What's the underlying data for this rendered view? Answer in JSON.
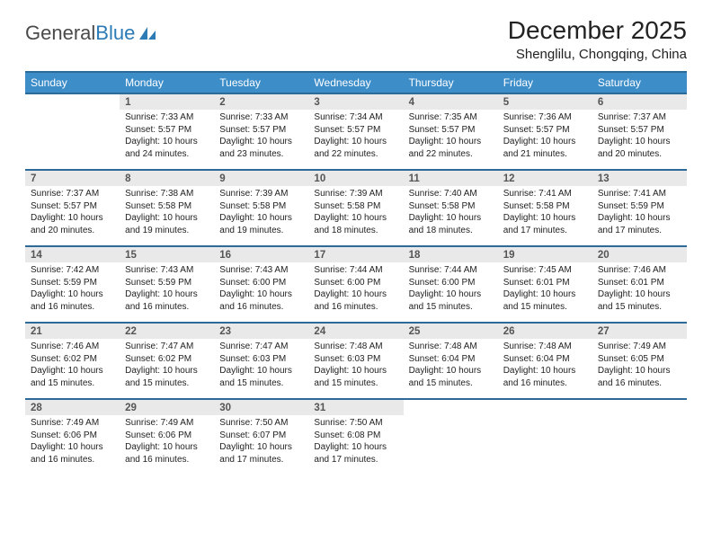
{
  "logo": {
    "text1": "General",
    "text2": "Blue"
  },
  "title": "December 2025",
  "location": "Shenglilu, Chongqing, China",
  "header_bg": "#3d8dc9",
  "header_border": "#2c6a9a",
  "daynum_bg": "#e9e9e9",
  "dow": [
    "Sunday",
    "Monday",
    "Tuesday",
    "Wednesday",
    "Thursday",
    "Friday",
    "Saturday"
  ],
  "weeks": [
    {
      "nums": [
        "",
        "1",
        "2",
        "3",
        "4",
        "5",
        "6"
      ],
      "cells": [
        null,
        {
          "sunrise": "Sunrise: 7:33 AM",
          "sunset": "Sunset: 5:57 PM",
          "daylight": "Daylight: 10 hours and 24 minutes."
        },
        {
          "sunrise": "Sunrise: 7:33 AM",
          "sunset": "Sunset: 5:57 PM",
          "daylight": "Daylight: 10 hours and 23 minutes."
        },
        {
          "sunrise": "Sunrise: 7:34 AM",
          "sunset": "Sunset: 5:57 PM",
          "daylight": "Daylight: 10 hours and 22 minutes."
        },
        {
          "sunrise": "Sunrise: 7:35 AM",
          "sunset": "Sunset: 5:57 PM",
          "daylight": "Daylight: 10 hours and 22 minutes."
        },
        {
          "sunrise": "Sunrise: 7:36 AM",
          "sunset": "Sunset: 5:57 PM",
          "daylight": "Daylight: 10 hours and 21 minutes."
        },
        {
          "sunrise": "Sunrise: 7:37 AM",
          "sunset": "Sunset: 5:57 PM",
          "daylight": "Daylight: 10 hours and 20 minutes."
        }
      ]
    },
    {
      "nums": [
        "7",
        "8",
        "9",
        "10",
        "11",
        "12",
        "13"
      ],
      "cells": [
        {
          "sunrise": "Sunrise: 7:37 AM",
          "sunset": "Sunset: 5:57 PM",
          "daylight": "Daylight: 10 hours and 20 minutes."
        },
        {
          "sunrise": "Sunrise: 7:38 AM",
          "sunset": "Sunset: 5:58 PM",
          "daylight": "Daylight: 10 hours and 19 minutes."
        },
        {
          "sunrise": "Sunrise: 7:39 AM",
          "sunset": "Sunset: 5:58 PM",
          "daylight": "Daylight: 10 hours and 19 minutes."
        },
        {
          "sunrise": "Sunrise: 7:39 AM",
          "sunset": "Sunset: 5:58 PM",
          "daylight": "Daylight: 10 hours and 18 minutes."
        },
        {
          "sunrise": "Sunrise: 7:40 AM",
          "sunset": "Sunset: 5:58 PM",
          "daylight": "Daylight: 10 hours and 18 minutes."
        },
        {
          "sunrise": "Sunrise: 7:41 AM",
          "sunset": "Sunset: 5:58 PM",
          "daylight": "Daylight: 10 hours and 17 minutes."
        },
        {
          "sunrise": "Sunrise: 7:41 AM",
          "sunset": "Sunset: 5:59 PM",
          "daylight": "Daylight: 10 hours and 17 minutes."
        }
      ]
    },
    {
      "nums": [
        "14",
        "15",
        "16",
        "17",
        "18",
        "19",
        "20"
      ],
      "cells": [
        {
          "sunrise": "Sunrise: 7:42 AM",
          "sunset": "Sunset: 5:59 PM",
          "daylight": "Daylight: 10 hours and 16 minutes."
        },
        {
          "sunrise": "Sunrise: 7:43 AM",
          "sunset": "Sunset: 5:59 PM",
          "daylight": "Daylight: 10 hours and 16 minutes."
        },
        {
          "sunrise": "Sunrise: 7:43 AM",
          "sunset": "Sunset: 6:00 PM",
          "daylight": "Daylight: 10 hours and 16 minutes."
        },
        {
          "sunrise": "Sunrise: 7:44 AM",
          "sunset": "Sunset: 6:00 PM",
          "daylight": "Daylight: 10 hours and 16 minutes."
        },
        {
          "sunrise": "Sunrise: 7:44 AM",
          "sunset": "Sunset: 6:00 PM",
          "daylight": "Daylight: 10 hours and 15 minutes."
        },
        {
          "sunrise": "Sunrise: 7:45 AM",
          "sunset": "Sunset: 6:01 PM",
          "daylight": "Daylight: 10 hours and 15 minutes."
        },
        {
          "sunrise": "Sunrise: 7:46 AM",
          "sunset": "Sunset: 6:01 PM",
          "daylight": "Daylight: 10 hours and 15 minutes."
        }
      ]
    },
    {
      "nums": [
        "21",
        "22",
        "23",
        "24",
        "25",
        "26",
        "27"
      ],
      "cells": [
        {
          "sunrise": "Sunrise: 7:46 AM",
          "sunset": "Sunset: 6:02 PM",
          "daylight": "Daylight: 10 hours and 15 minutes."
        },
        {
          "sunrise": "Sunrise: 7:47 AM",
          "sunset": "Sunset: 6:02 PM",
          "daylight": "Daylight: 10 hours and 15 minutes."
        },
        {
          "sunrise": "Sunrise: 7:47 AM",
          "sunset": "Sunset: 6:03 PM",
          "daylight": "Daylight: 10 hours and 15 minutes."
        },
        {
          "sunrise": "Sunrise: 7:48 AM",
          "sunset": "Sunset: 6:03 PM",
          "daylight": "Daylight: 10 hours and 15 minutes."
        },
        {
          "sunrise": "Sunrise: 7:48 AM",
          "sunset": "Sunset: 6:04 PM",
          "daylight": "Daylight: 10 hours and 15 minutes."
        },
        {
          "sunrise": "Sunrise: 7:48 AM",
          "sunset": "Sunset: 6:04 PM",
          "daylight": "Daylight: 10 hours and 16 minutes."
        },
        {
          "sunrise": "Sunrise: 7:49 AM",
          "sunset": "Sunset: 6:05 PM",
          "daylight": "Daylight: 10 hours and 16 minutes."
        }
      ]
    },
    {
      "nums": [
        "28",
        "29",
        "30",
        "31",
        "",
        "",
        ""
      ],
      "cells": [
        {
          "sunrise": "Sunrise: 7:49 AM",
          "sunset": "Sunset: 6:06 PM",
          "daylight": "Daylight: 10 hours and 16 minutes."
        },
        {
          "sunrise": "Sunrise: 7:49 AM",
          "sunset": "Sunset: 6:06 PM",
          "daylight": "Daylight: 10 hours and 16 minutes."
        },
        {
          "sunrise": "Sunrise: 7:50 AM",
          "sunset": "Sunset: 6:07 PM",
          "daylight": "Daylight: 10 hours and 17 minutes."
        },
        {
          "sunrise": "Sunrise: 7:50 AM",
          "sunset": "Sunset: 6:08 PM",
          "daylight": "Daylight: 10 hours and 17 minutes."
        },
        null,
        null,
        null
      ]
    }
  ]
}
